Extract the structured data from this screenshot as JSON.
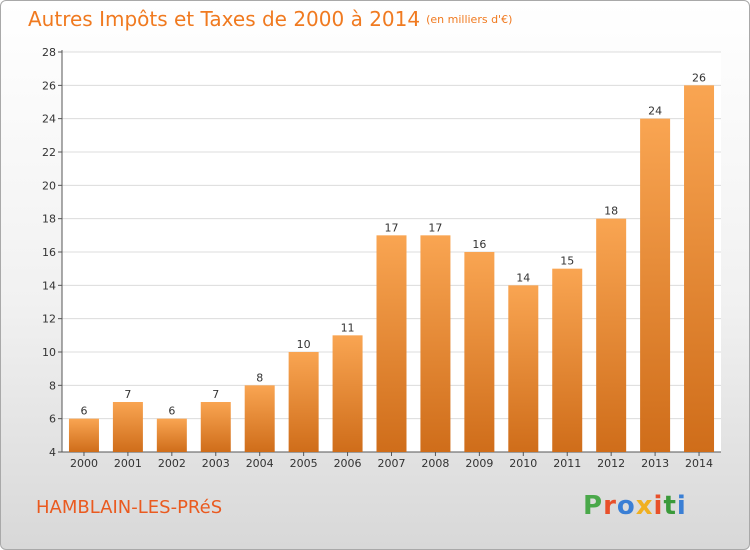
{
  "header": {
    "title": "Autres Impôts et Taxes de 2000 à 2014",
    "subtitle": "(en milliers d'€)"
  },
  "footer": {
    "commune": "HAMBLAIN-LES-PRéS",
    "logo_letters": [
      "P",
      "r",
      "o",
      "x",
      "i",
      "t",
      "i"
    ],
    "logo_colors": [
      "#4aa84a",
      "#e8502a",
      "#3a7fd5",
      "#f0b020",
      "#e8502a",
      "#3a9a3a",
      "#3a7fd5"
    ]
  },
  "colors": {
    "bar_light": "#f9a552",
    "bar_dark": "#cf6d1a",
    "accent": "#f07a20"
  },
  "chart_data": {
    "type": "bar",
    "categories": [
      "2000",
      "2001",
      "2002",
      "2003",
      "2004",
      "2005",
      "2006",
      "2007",
      "2008",
      "2009",
      "2010",
      "2011",
      "2012",
      "2013",
      "2014"
    ],
    "values": [
      6,
      7,
      6,
      7,
      8,
      10,
      11,
      17,
      17,
      16,
      14,
      15,
      18,
      24,
      26
    ],
    "data_labels": [
      "6",
      "7",
      "6",
      "7",
      "8",
      "10",
      "11",
      "17",
      "17",
      "16",
      "14",
      "15",
      "18",
      "24",
      "26"
    ],
    "yticks": [
      4,
      6,
      8,
      10,
      12,
      14,
      16,
      18,
      20,
      22,
      24,
      26,
      28
    ],
    "ylim": [
      4,
      28
    ],
    "grid": true,
    "legend": "none"
  }
}
